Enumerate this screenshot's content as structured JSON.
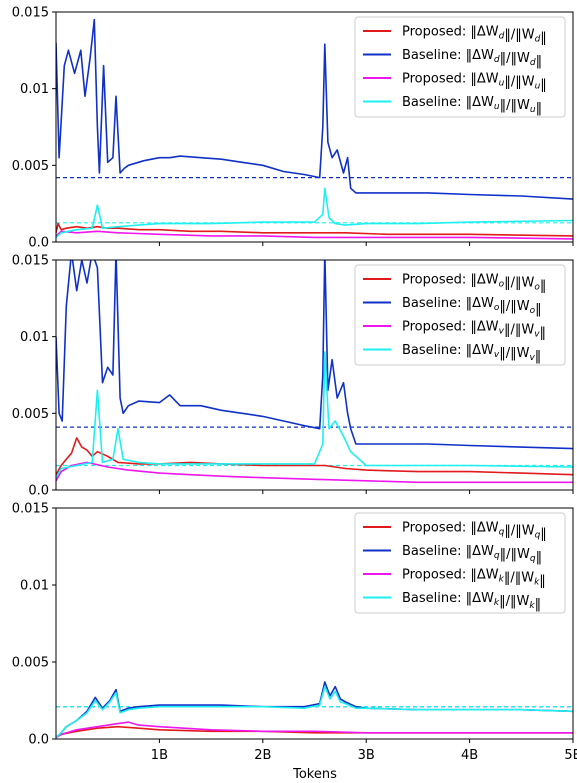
{
  "chart_data": [
    {
      "type": "line",
      "ylim": [
        0,
        0.015
      ],
      "xlim": [
        0,
        5
      ],
      "yticks": [
        "0.0",
        "0.005",
        "0.01",
        "0.015"
      ],
      "xticks": [
        "1B",
        "2B",
        "3B",
        "4B",
        "5B"
      ],
      "xlabel": "",
      "legend_position": "top-right",
      "grid": false,
      "series": [
        {
          "name": "Proposed: ‖ΔW_d‖/‖W_d‖",
          "legend_main": "Proposed: ‖ΔW",
          "sub": "d",
          "mid": "‖/‖W",
          "end": "‖",
          "color": "#e31a1c",
          "x": [
            0.0,
            0.02,
            0.05,
            0.1,
            0.2,
            0.3,
            0.4,
            0.5,
            0.6,
            0.8,
            1.0,
            1.3,
            1.6,
            2.0,
            2.5,
            2.6,
            2.8,
            3.2,
            4.0,
            5.0
          ],
          "values": [
            0.0006,
            0.0012,
            0.0008,
            0.0009,
            0.001,
            0.0009,
            0.001,
            0.0009,
            0.0009,
            0.0008,
            0.0008,
            0.0007,
            0.0007,
            0.0006,
            0.0006,
            0.0006,
            0.0006,
            0.0005,
            0.0005,
            0.0004
          ]
        },
        {
          "name": "Baseline: ‖ΔW_d‖/‖W_d‖",
          "legend_main": "Baseline: ‖ΔW",
          "sub": "d",
          "mid": "‖/‖W",
          "end": "‖",
          "color": "#1031c8",
          "x": [
            0.0,
            0.03,
            0.08,
            0.12,
            0.18,
            0.24,
            0.28,
            0.33,
            0.37,
            0.4,
            0.42,
            0.46,
            0.5,
            0.55,
            0.58,
            0.62,
            0.66,
            0.7,
            0.85,
            1.0,
            1.1,
            1.2,
            1.4,
            1.6,
            1.8,
            2.0,
            2.2,
            2.4,
            2.55,
            2.58,
            2.6,
            2.63,
            2.67,
            2.72,
            2.78,
            2.82,
            2.85,
            2.9,
            3.2,
            3.6,
            4.0,
            4.5,
            5.0
          ],
          "values": [
            0.013,
            0.0055,
            0.0115,
            0.0125,
            0.011,
            0.0125,
            0.0095,
            0.012,
            0.0145,
            0.0075,
            0.0045,
            0.0115,
            0.0052,
            0.0055,
            0.0095,
            0.0045,
            0.0048,
            0.005,
            0.0053,
            0.0055,
            0.0055,
            0.0056,
            0.0055,
            0.0054,
            0.0052,
            0.005,
            0.0046,
            0.0044,
            0.0042,
            0.0075,
            0.0129,
            0.0065,
            0.0055,
            0.006,
            0.0045,
            0.0055,
            0.0035,
            0.0032,
            0.0032,
            0.0032,
            0.0031,
            0.003,
            0.0028
          ]
        },
        {
          "name": "Proposed: ‖ΔW_u‖/‖W_u‖",
          "legend_main": "Proposed: ‖ΔW",
          "sub": "u",
          "mid": "‖/‖W",
          "end": "‖",
          "color": "#ee17ee",
          "x": [
            0.0,
            0.05,
            0.2,
            0.4,
            0.6,
            1.0,
            1.5,
            2.0,
            2.5,
            3.0,
            4.0,
            5.0
          ],
          "values": [
            0.0004,
            0.0007,
            0.0006,
            0.0007,
            0.0006,
            0.0005,
            0.0004,
            0.0004,
            0.0003,
            0.0003,
            0.0003,
            0.0002
          ]
        },
        {
          "name": "Baseline: ‖ΔW_u‖/‖W_u‖",
          "legend_main": "Baseline: ‖ΔW",
          "sub": "u",
          "mid": "‖/‖W",
          "end": "‖",
          "color": "#1ef0ef",
          "x": [
            0.0,
            0.05,
            0.2,
            0.35,
            0.4,
            0.45,
            0.6,
            0.8,
            1.0,
            1.5,
            2.0,
            2.5,
            2.58,
            2.6,
            2.64,
            2.7,
            2.8,
            3.0,
            3.5,
            4.0,
            5.0
          ],
          "values": [
            0.0003,
            0.0006,
            0.0008,
            0.0009,
            0.0024,
            0.0009,
            0.001,
            0.0011,
            0.0012,
            0.0012,
            0.0013,
            0.0013,
            0.0018,
            0.0035,
            0.0016,
            0.0012,
            0.0011,
            0.0012,
            0.0012,
            0.0013,
            0.0014
          ]
        }
      ],
      "hlines": [
        {
          "y": 0.0042,
          "color": "#1031c8"
        },
        {
          "y": 0.00125,
          "color": "#1ef0ef"
        }
      ]
    },
    {
      "type": "line",
      "ylim": [
        0,
        0.015
      ],
      "xlim": [
        0,
        5
      ],
      "yticks": [
        "0.0",
        "0.005",
        "0.01",
        "0.015"
      ],
      "xticks": [
        "1B",
        "2B",
        "3B",
        "4B",
        "5B"
      ],
      "xlabel": "",
      "legend_position": "top-right",
      "grid": false,
      "series": [
        {
          "name": "Proposed: ‖ΔW_o‖/‖W_o‖",
          "legend_main": "Proposed: ‖ΔW",
          "sub": "o",
          "mid": "‖/‖W",
          "end": "‖",
          "color": "#e31a1c",
          "x": [
            0.0,
            0.05,
            0.1,
            0.15,
            0.2,
            0.25,
            0.3,
            0.35,
            0.4,
            0.5,
            0.6,
            0.8,
            1.0,
            1.3,
            1.6,
            2.0,
            2.5,
            2.6,
            2.8,
            3.0,
            3.5,
            4.0,
            4.5,
            5.0
          ],
          "values": [
            0.001,
            0.0016,
            0.002,
            0.0024,
            0.0034,
            0.0028,
            0.0026,
            0.0022,
            0.0025,
            0.0022,
            0.0018,
            0.0017,
            0.0017,
            0.0018,
            0.0017,
            0.0016,
            0.0016,
            0.0016,
            0.0014,
            0.0013,
            0.0012,
            0.0012,
            0.0011,
            0.001
          ]
        },
        {
          "name": "Baseline: ‖ΔW_o‖/‖W_o‖",
          "legend_main": "Baseline: ‖ΔW",
          "sub": "o",
          "mid": "‖/‖W",
          "end": "‖",
          "color": "#1031c8",
          "x": [
            0.0,
            0.03,
            0.06,
            0.1,
            0.15,
            0.2,
            0.25,
            0.3,
            0.35,
            0.4,
            0.45,
            0.5,
            0.55,
            0.58,
            0.62,
            0.65,
            0.7,
            0.8,
            1.0,
            1.1,
            1.2,
            1.4,
            1.6,
            1.8,
            2.0,
            2.2,
            2.4,
            2.55,
            2.58,
            2.6,
            2.63,
            2.67,
            2.72,
            2.78,
            2.82,
            2.85,
            2.9,
            3.2,
            3.6,
            4.0,
            4.5,
            5.0
          ],
          "values": [
            0.01,
            0.005,
            0.0045,
            0.012,
            0.0155,
            0.013,
            0.015,
            0.0135,
            0.0155,
            0.0145,
            0.007,
            0.008,
            0.0075,
            0.0155,
            0.006,
            0.005,
            0.0055,
            0.0058,
            0.0057,
            0.0062,
            0.0055,
            0.0055,
            0.0052,
            0.005,
            0.0048,
            0.0045,
            0.0042,
            0.004,
            0.0075,
            0.0155,
            0.0065,
            0.0085,
            0.006,
            0.007,
            0.005,
            0.004,
            0.003,
            0.003,
            0.003,
            0.0029,
            0.0028,
            0.0027
          ]
        },
        {
          "name": "Proposed: ‖ΔW_v‖/‖W_v‖",
          "legend_main": "Proposed: ‖ΔW",
          "sub": "v",
          "mid": "‖/‖W",
          "end": "‖",
          "color": "#ee17ee",
          "x": [
            0.0,
            0.05,
            0.15,
            0.3,
            0.5,
            0.7,
            1.0,
            1.3,
            1.6,
            2.0,
            2.5,
            3.0,
            3.5,
            4.0,
            4.5,
            5.0
          ],
          "values": [
            0.0006,
            0.0012,
            0.0016,
            0.0018,
            0.0015,
            0.0013,
            0.0011,
            0.001,
            0.0009,
            0.0008,
            0.0007,
            0.0006,
            0.0005,
            0.0005,
            0.0005,
            0.0005
          ]
        },
        {
          "name": "Baseline: ‖ΔW_v‖/‖W_v‖",
          "legend_main": "Baseline: ‖ΔW",
          "sub": "v",
          "mid": "‖/‖W",
          "end": "‖",
          "color": "#1ef0ef",
          "x": [
            0.0,
            0.05,
            0.2,
            0.35,
            0.4,
            0.45,
            0.55,
            0.6,
            0.65,
            0.8,
            1.0,
            1.5,
            2.0,
            2.5,
            2.58,
            2.6,
            2.64,
            2.7,
            2.78,
            2.85,
            3.0,
            3.5,
            4.0,
            5.0
          ],
          "values": [
            0.0008,
            0.0014,
            0.0016,
            0.0018,
            0.0065,
            0.0018,
            0.002,
            0.004,
            0.002,
            0.0018,
            0.0017,
            0.0017,
            0.0017,
            0.0017,
            0.003,
            0.009,
            0.004,
            0.0045,
            0.0035,
            0.0025,
            0.0016,
            0.0016,
            0.0016,
            0.0015
          ]
        }
      ],
      "hlines": [
        {
          "y": 0.0041,
          "color": "#1031c8"
        },
        {
          "y": 0.0016,
          "color": "#1ef0ef"
        }
      ]
    },
    {
      "type": "line",
      "ylim": [
        0,
        0.015
      ],
      "xlim": [
        0,
        5
      ],
      "yticks": [
        "0.0",
        "0.005",
        "0.01",
        "0.015"
      ],
      "xticks": [
        "1B",
        "2B",
        "3B",
        "4B",
        "5B"
      ],
      "xlabel": "Tokens",
      "legend_position": "top-right",
      "grid": false,
      "series": [
        {
          "name": "Proposed: ‖ΔW_q‖/‖W_q‖",
          "legend_main": "Proposed: ‖ΔW",
          "sub": "q",
          "mid": "‖/‖W",
          "end": "‖",
          "color": "#e31a1c",
          "x": [
            0.0,
            0.05,
            0.2,
            0.4,
            0.6,
            0.8,
            1.0,
            1.5,
            2.0,
            2.5,
            3.0,
            4.0,
            5.0
          ],
          "values": [
            0.0001,
            0.0003,
            0.0005,
            0.0007,
            0.0008,
            0.0007,
            0.0006,
            0.0005,
            0.0005,
            0.0004,
            0.0004,
            0.0004,
            0.0004
          ]
        },
        {
          "name": "Baseline: ‖ΔW_q‖/‖W_q‖",
          "legend_main": "Baseline: ‖ΔW",
          "sub": "q",
          "mid": "‖/‖W",
          "end": "‖",
          "color": "#1031c8",
          "x": [
            0.0,
            0.05,
            0.1,
            0.2,
            0.3,
            0.38,
            0.45,
            0.52,
            0.58,
            0.62,
            0.7,
            0.8,
            1.0,
            1.3,
            1.6,
            2.0,
            2.4,
            2.55,
            2.6,
            2.65,
            2.7,
            2.75,
            2.8,
            2.9,
            3.0,
            3.5,
            4.0,
            4.5,
            5.0
          ],
          "values": [
            0.0001,
            0.0004,
            0.0008,
            0.0012,
            0.0018,
            0.0027,
            0.002,
            0.0025,
            0.0032,
            0.0018,
            0.002,
            0.0021,
            0.0022,
            0.0022,
            0.0022,
            0.0021,
            0.0021,
            0.0023,
            0.0037,
            0.0028,
            0.0034,
            0.0026,
            0.0024,
            0.0021,
            0.002,
            0.0019,
            0.0019,
            0.0019,
            0.0018
          ]
        },
        {
          "name": "Proposed: ‖ΔW_k‖/‖W_k‖",
          "legend_main": "Proposed: ‖ΔW",
          "sub": "k",
          "mid": "‖/‖W",
          "end": "‖",
          "color": "#ee17ee",
          "x": [
            0.0,
            0.05,
            0.2,
            0.4,
            0.6,
            0.7,
            0.8,
            1.0,
            1.5,
            2.0,
            2.5,
            3.0,
            4.0,
            5.0
          ],
          "values": [
            0.0001,
            0.0003,
            0.0006,
            0.0008,
            0.001,
            0.0011,
            0.0009,
            0.0008,
            0.0006,
            0.0005,
            0.0005,
            0.0004,
            0.0004,
            0.0004
          ]
        },
        {
          "name": "Baseline: ‖ΔW_k‖/‖W_k‖",
          "legend_main": "Baseline: ‖ΔW",
          "sub": "k",
          "mid": "‖/‖W",
          "end": "‖",
          "color": "#1ef0ef",
          "x": [
            0.0,
            0.05,
            0.1,
            0.2,
            0.3,
            0.38,
            0.45,
            0.52,
            0.58,
            0.62,
            0.7,
            0.8,
            1.0,
            1.3,
            1.6,
            2.0,
            2.4,
            2.55,
            2.6,
            2.65,
            2.7,
            2.75,
            2.8,
            2.9,
            3.0,
            3.5,
            4.0,
            4.5,
            5.0
          ],
          "values": [
            0.0001,
            0.0004,
            0.0008,
            0.0012,
            0.0017,
            0.0025,
            0.0019,
            0.0024,
            0.003,
            0.0017,
            0.0019,
            0.002,
            0.0021,
            0.0021,
            0.0021,
            0.0021,
            0.002,
            0.0022,
            0.0034,
            0.0026,
            0.0031,
            0.0024,
            0.0023,
            0.002,
            0.002,
            0.0019,
            0.0019,
            0.0019,
            0.0018
          ]
        }
      ],
      "hlines": [
        {
          "y": 0.0021,
          "color": "#1031c8"
        },
        {
          "y": 0.0021,
          "color": "#1ef0ef"
        }
      ]
    }
  ]
}
